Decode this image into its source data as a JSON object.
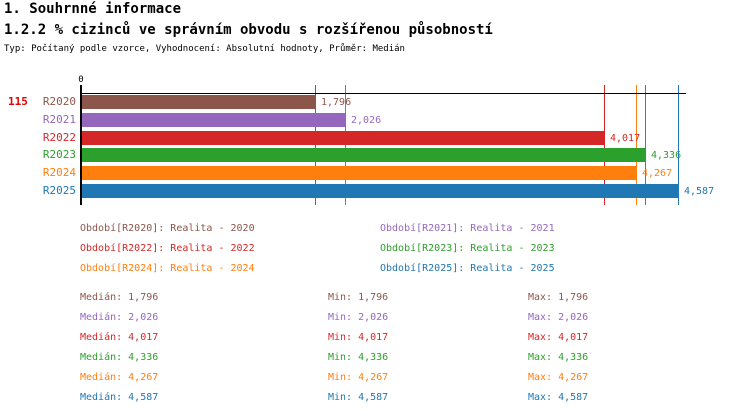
{
  "header": {
    "section_title": "1. Souhrnné informace",
    "indicator_title": "1.2.2 % cizinců ve správním obvodu s rozšířenou působností",
    "meta_line": "Typ: Počítaný podle vzorce, Vyhodnocení: Absolutní hodnoty, Průměr: Medián"
  },
  "row_count": "115",
  "chart_data": {
    "type": "bar",
    "orientation": "horizontal",
    "title": "1.2.2 % cizinců ve správním obvodu s rozšířenou působností",
    "categories": [
      "R2020",
      "R2021",
      "R2022",
      "R2023",
      "R2024",
      "R2025"
    ],
    "values": [
      1796,
      2026,
      4017,
      4336,
      4267,
      4587
    ],
    "value_labels": [
      "1,796",
      "2,026",
      "4,017",
      "4,336",
      "4,267",
      "4,587"
    ],
    "colors": [
      "#8c564b",
      "#9467bd",
      "#d62728",
      "#2ca02c",
      "#ff7f0e",
      "#1f77b4"
    ],
    "xlim": [
      0,
      4587
    ],
    "axis_tick_label": "0",
    "grid": false,
    "value_marker_lines": true,
    "legend_position": "below",
    "xlabel": "",
    "ylabel": ""
  },
  "legend": {
    "columns": [
      [
        {
          "label": "Období[R2020]: Realita - 2020",
          "color": "#8c564b"
        },
        {
          "label": "Období[R2022]: Realita - 2022",
          "color": "#d62728"
        },
        {
          "label": "Období[R2024]: Realita - 2024",
          "color": "#ff7f0e"
        }
      ],
      [
        {
          "label": "Období[R2021]: Realita - 2021",
          "color": "#9467bd"
        },
        {
          "label": "Období[R2023]: Realita - 2023",
          "color": "#2ca02c"
        },
        {
          "label": "Období[R2025]: Realita - 2025",
          "color": "#1f77b4"
        }
      ]
    ]
  },
  "stats": {
    "labels": {
      "median": "Medián",
      "min": "Min",
      "max": "Max"
    },
    "rows": [
      {
        "median": "1,796",
        "min": "1,796",
        "max": "1,796",
        "color": "#8c564b"
      },
      {
        "median": "2,026",
        "min": "2,026",
        "max": "2,026",
        "color": "#9467bd"
      },
      {
        "median": "4,017",
        "min": "4,017",
        "max": "4,017",
        "color": "#d62728"
      },
      {
        "median": "4,336",
        "min": "4,336",
        "max": "4,336",
        "color": "#2ca02c"
      },
      {
        "median": "4,267",
        "min": "4,267",
        "max": "4,267",
        "color": "#ff7f0e"
      },
      {
        "median": "4,587",
        "min": "4,587",
        "max": "4,587",
        "color": "#1f77b4"
      }
    ]
  },
  "accent_colors": {
    "row_count_red": "#e60000",
    "axis_black": "#000000"
  }
}
